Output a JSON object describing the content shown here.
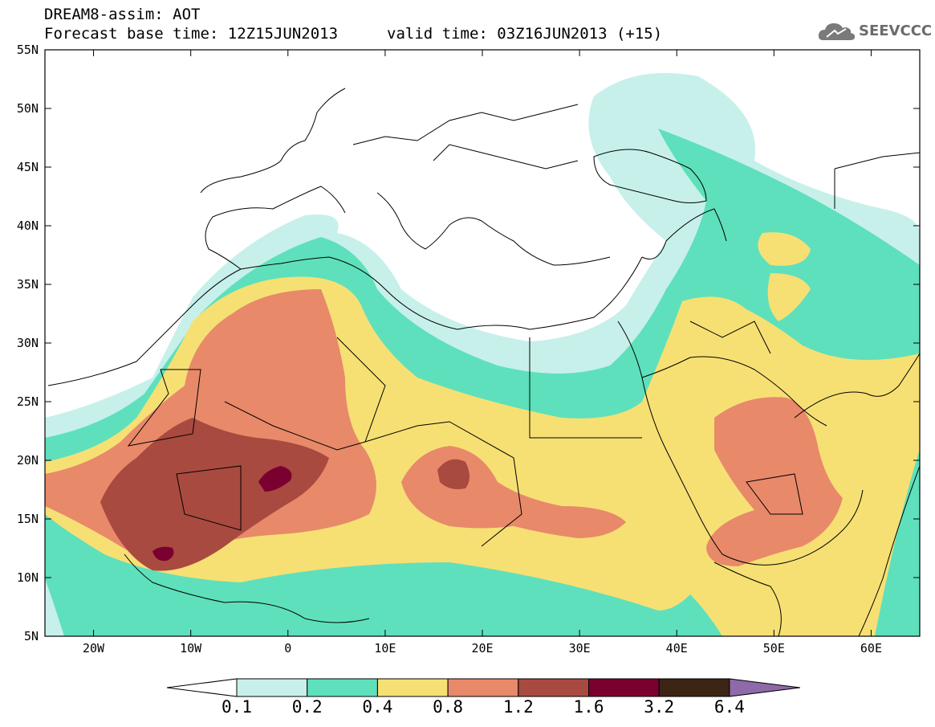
{
  "header": {
    "model": "DREAM8-assim: AOT",
    "base_time": "Forecast base time: 12Z15JUN2013",
    "valid_time": "valid time: 03Z16JUN2013 (+15)"
  },
  "logo": {
    "text": "SEEVCCC",
    "icon": "cloud-icon"
  },
  "map": {
    "lon_ticks": [
      "20W",
      "10W",
      "0",
      "10E",
      "20E",
      "30E",
      "40E",
      "50E",
      "60E"
    ],
    "lat_ticks": [
      "55N",
      "50N",
      "45N",
      "40N",
      "35N",
      "30N",
      "25N",
      "20N",
      "15N",
      "10N",
      "5N"
    ],
    "lon_range": [
      -25,
      65
    ],
    "lat_range": [
      5,
      55
    ]
  },
  "colorbar": {
    "labels": [
      "0.1",
      "0.2",
      "0.4",
      "0.8",
      "1.2",
      "1.6",
      "3.2",
      "6.4"
    ],
    "colors": [
      "#ffffff",
      "#c7f0eb",
      "#5ee0bc",
      "#f6e074",
      "#e8896a",
      "#a94a40",
      "#7a0030",
      "#3c2515",
      "#8e6aa8"
    ]
  }
}
